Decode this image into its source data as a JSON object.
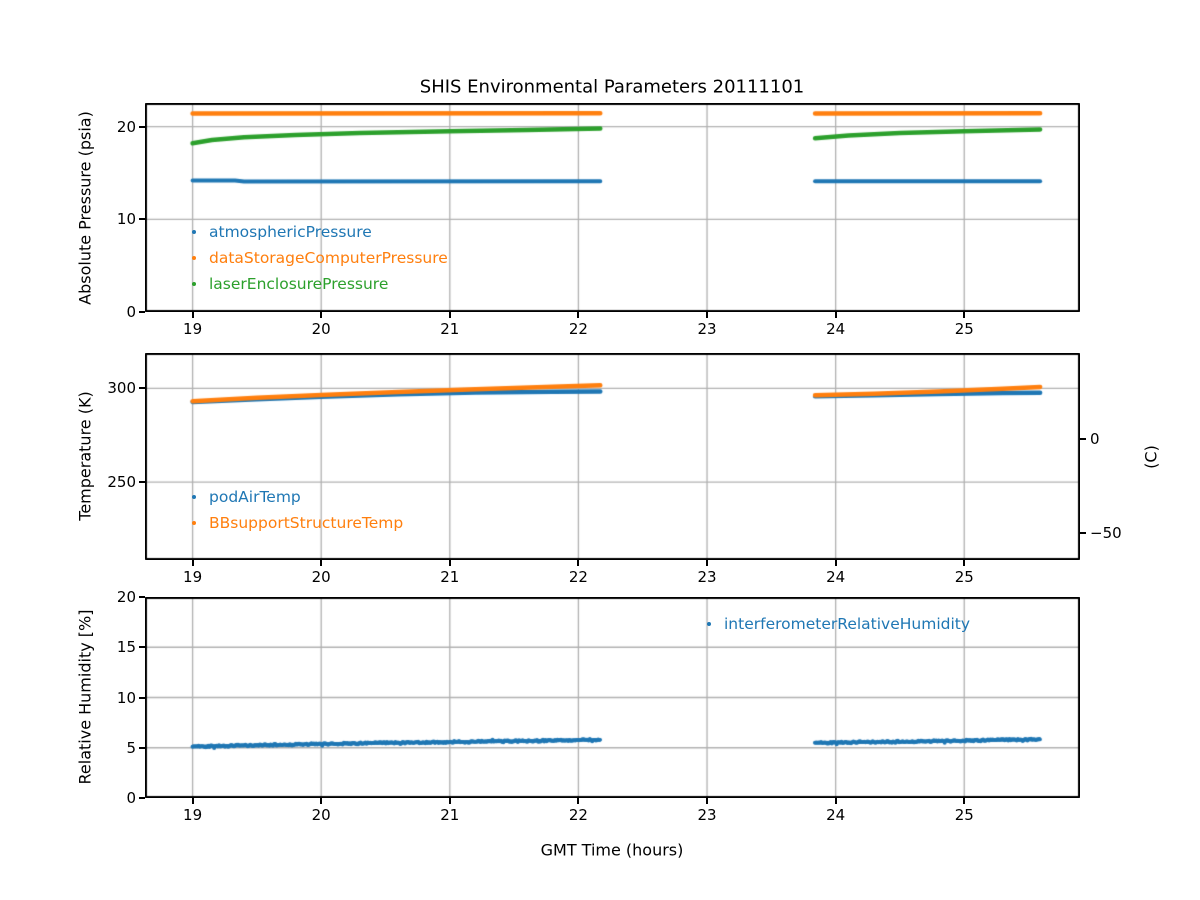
{
  "figure": {
    "title": "SHIS Environmental Parameters 20111101",
    "background": "#ffffff"
  },
  "colors": {
    "blue": "#1f77b4",
    "orange": "#ff7f0e",
    "green": "#2ca02c",
    "grid": "#b0b0b0",
    "spine": "#000000"
  },
  "chart_data": [
    {
      "id": "pressure",
      "type": "line",
      "title": "SHIS Environmental Parameters 20111101",
      "ylabel": "Absolute Pressure (psia)",
      "xlim": [
        18.63,
        25.9
      ],
      "ylim": [
        0,
        22.55
      ],
      "grid": true,
      "legend_loc": "lower-left",
      "xticks": {
        "values": [
          19,
          20,
          21,
          22,
          23,
          24,
          25
        ],
        "labels": [
          "19",
          "20",
          "21",
          "22",
          "23",
          "24",
          "25"
        ]
      },
      "yticks": {
        "values": [
          0,
          10,
          20
        ],
        "labels": [
          "0",
          "10",
          "20"
        ]
      },
      "series": [
        {
          "name": "atmosphericPressure",
          "color": "#1f77b4",
          "lw": 4,
          "noise": 0,
          "segments": [
            [
              [
                19.0,
                14.2
              ],
              [
                19.33,
                14.2
              ],
              [
                19.4,
                14.08
              ],
              [
                22.17,
                14.1
              ]
            ],
            [
              [
                23.84,
                14.12
              ],
              [
                25.59,
                14.12
              ]
            ]
          ]
        },
        {
          "name": "dataStorageComputerPressure",
          "color": "#ff7f0e",
          "lw": 4.5,
          "noise": 0,
          "segments": [
            [
              [
                19.0,
                21.42
              ],
              [
                22.17,
                21.45
              ]
            ],
            [
              [
                23.84,
                21.42
              ],
              [
                25.59,
                21.45
              ]
            ]
          ]
        },
        {
          "name": "laserEnclosurePressure",
          "color": "#2ca02c",
          "lw": 4.5,
          "noise": 0,
          "segments": [
            [
              [
                19.0,
                18.2
              ],
              [
                19.15,
                18.55
              ],
              [
                19.4,
                18.85
              ],
              [
                19.8,
                19.1
              ],
              [
                20.3,
                19.3
              ],
              [
                21.0,
                19.5
              ],
              [
                21.6,
                19.65
              ],
              [
                22.17,
                19.8
              ]
            ],
            [
              [
                23.84,
                18.75
              ],
              [
                24.1,
                19.05
              ],
              [
                24.5,
                19.3
              ],
              [
                25.0,
                19.5
              ],
              [
                25.59,
                19.7
              ]
            ]
          ]
        }
      ]
    },
    {
      "id": "temperature",
      "type": "line",
      "ylabel": "Temperature (K)",
      "ylabel_right": "(C)",
      "xlim": [
        18.63,
        25.9
      ],
      "ylim": [
        208.5,
        318.8
      ],
      "grid": true,
      "legend_loc": "lower-left",
      "xticks": {
        "values": [
          19,
          20,
          21,
          22,
          23,
          24,
          25
        ],
        "labels": [
          "19",
          "20",
          "21",
          "22",
          "23",
          "24",
          "25"
        ]
      },
      "yticks": {
        "values": [
          250,
          300
        ],
        "labels": [
          "250",
          "300"
        ]
      },
      "yticks_right": {
        "values": [
          273.15,
          223.15
        ],
        "labels": [
          "0",
          "−50"
        ]
      },
      "series": [
        {
          "name": "podAirTemp",
          "color": "#1f77b4",
          "lw": 4.5,
          "noise": 0,
          "segments": [
            [
              [
                19.0,
                292.7
              ],
              [
                19.5,
                294.2
              ],
              [
                20.0,
                295.5
              ],
              [
                20.6,
                296.8
              ],
              [
                21.2,
                297.7
              ],
              [
                21.8,
                298.2
              ],
              [
                22.17,
                298.3
              ]
            ],
            [
              [
                23.84,
                295.8
              ],
              [
                24.3,
                296.3
              ],
              [
                24.8,
                297.0
              ],
              [
                25.3,
                297.5
              ],
              [
                25.59,
                297.6
              ]
            ]
          ]
        },
        {
          "name": "BBsupportStructureTemp",
          "color": "#ff7f0e",
          "lw": 4.5,
          "noise": 0,
          "segments": [
            [
              [
                19.0,
                293.1
              ],
              [
                19.5,
                294.9
              ],
              [
                20.0,
                296.4
              ],
              [
                20.6,
                298.0
              ],
              [
                21.2,
                299.5
              ],
              [
                21.8,
                300.8
              ],
              [
                22.17,
                301.6
              ]
            ],
            [
              [
                23.84,
                296.3
              ],
              [
                24.3,
                297.1
              ],
              [
                24.8,
                298.3
              ],
              [
                25.3,
                299.8
              ],
              [
                25.59,
                300.7
              ]
            ]
          ]
        }
      ]
    },
    {
      "id": "humidity",
      "type": "line",
      "ylabel": "Relative Humidity [%]",
      "xlabel": "GMT Time (hours)",
      "xlim": [
        18.63,
        25.9
      ],
      "ylim": [
        0,
        20
      ],
      "grid": true,
      "legend_loc": "upper-right",
      "xticks": {
        "values": [
          19,
          20,
          21,
          22,
          23,
          24,
          25
        ],
        "labels": [
          "19",
          "20",
          "21",
          "22",
          "23",
          "24",
          "25"
        ]
      },
      "yticks": {
        "values": [
          0,
          5,
          10,
          15,
          20
        ],
        "labels": [
          "0",
          "5",
          "10",
          "15",
          "20"
        ]
      },
      "series": [
        {
          "name": "interferometerRelativeHumidity",
          "color": "#1f77b4",
          "lw": 3.5,
          "noise": 0.09,
          "segments": [
            [
              [
                19.0,
                5.12
              ],
              [
                19.7,
                5.3
              ],
              [
                20.5,
                5.48
              ],
              [
                21.2,
                5.6
              ],
              [
                21.8,
                5.72
              ],
              [
                22.17,
                5.8
              ]
            ],
            [
              [
                23.84,
                5.5
              ],
              [
                24.4,
                5.58
              ],
              [
                24.9,
                5.68
              ],
              [
                25.3,
                5.78
              ],
              [
                25.59,
                5.82
              ]
            ]
          ]
        }
      ]
    }
  ]
}
